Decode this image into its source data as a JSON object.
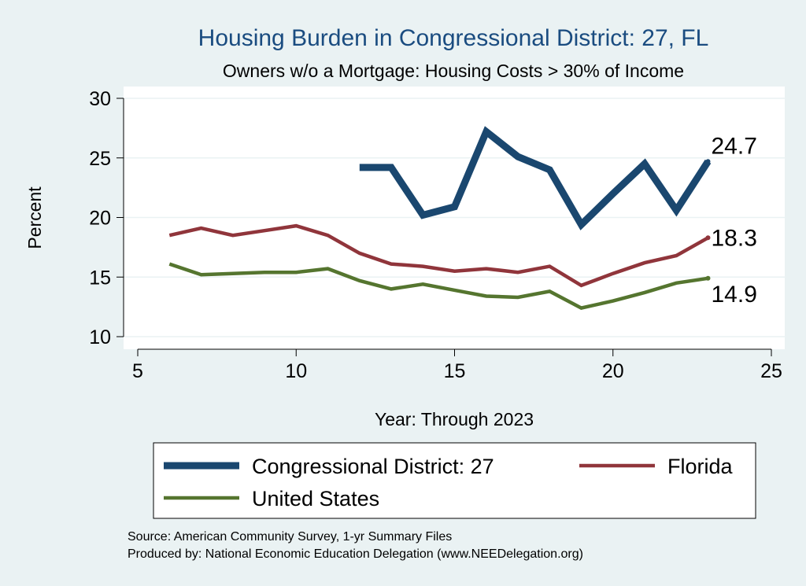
{
  "chart_data": {
    "type": "line",
    "title": "Housing Burden in Congressional District:  27, FL",
    "subtitle": "Owners w/o a Mortgage: Housing Costs > 30% of Income",
    "xlabel": "Year: Through 2023",
    "ylabel": "Percent",
    "xlim": [
      5,
      25
    ],
    "ylim": [
      10,
      30
    ],
    "xticks": [
      5,
      10,
      15,
      20,
      25
    ],
    "yticks": [
      10,
      15,
      20,
      25,
      30
    ],
    "grid": true,
    "legend_position": "bottom",
    "series": [
      {
        "name": "Congressional District:  27",
        "color": "#1a476f",
        "x": [
          12,
          13,
          14,
          15,
          16,
          17,
          18,
          19,
          20,
          21,
          22,
          23
        ],
        "y": [
          24.2,
          24.2,
          20.2,
          20.9,
          27.2,
          25.1,
          24.0,
          19.4,
          22.0,
          24.5,
          20.6,
          24.7
        ],
        "end_label": "24.7"
      },
      {
        "name": "Florida",
        "color": "#90353b",
        "x": [
          6,
          7,
          8,
          9,
          10,
          11,
          12,
          13,
          14,
          15,
          16,
          17,
          18,
          19,
          20,
          21,
          22,
          23
        ],
        "y": [
          18.5,
          19.1,
          18.5,
          18.9,
          19.3,
          18.5,
          17.0,
          16.1,
          15.9,
          15.5,
          15.7,
          15.4,
          15.9,
          14.3,
          15.3,
          16.2,
          16.8,
          18.3
        ],
        "end_label": "18.3"
      },
      {
        "name": "United States",
        "color": "#55752f",
        "x": [
          6,
          7,
          8,
          9,
          10,
          11,
          12,
          13,
          14,
          15,
          16,
          17,
          18,
          19,
          20,
          21,
          22,
          23
        ],
        "y": [
          16.1,
          15.2,
          15.3,
          15.4,
          15.4,
          15.7,
          14.7,
          14.0,
          14.4,
          13.9,
          13.4,
          13.3,
          13.8,
          12.4,
          13.0,
          13.7,
          14.5,
          14.9
        ],
        "end_label": "14.9"
      }
    ]
  },
  "source_lines": [
    "Source: American Community Survey, 1-yr Summary Files",
    "Produced by: National Economic Education Delegation (www.NEEDelegation.org)"
  ]
}
